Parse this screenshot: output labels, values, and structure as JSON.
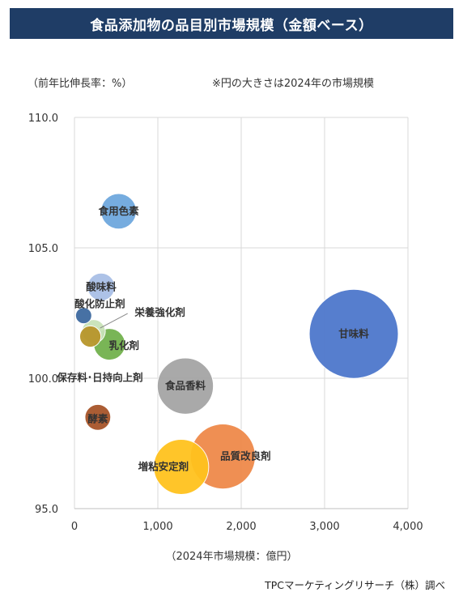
{
  "title": "食品添加物の品目別市場規模（金額ベース）",
  "y_unit_note": "（前年比伸長率：%）",
  "size_note": "※円の大きさは2024年の市場規模",
  "credit": "TPCマーケティングリサーチ（株）調べ",
  "chart_data": {
    "type": "scatter",
    "xlabel": "（2024年市場規模：億円）",
    "ylabel": "",
    "xlim": [
      0,
      4000
    ],
    "ylim": [
      95.0,
      110.0
    ],
    "xticks": [
      "0",
      "1,000",
      "2,000",
      "3,000",
      "4,000"
    ],
    "yticks": [
      "95.0",
      "100.0",
      "105.0",
      "110.0"
    ],
    "grid": true,
    "points": [
      {
        "label": "甘味料",
        "x": 3350,
        "y": 101.7,
        "size": 3350,
        "color": "#4e78cc"
      },
      {
        "label": "品質改良剤",
        "x": 1780,
        "y": 97.0,
        "size": 1780,
        "color": "#ef8a4a"
      },
      {
        "label": "増粘安定剤",
        "x": 1280,
        "y": 96.6,
        "size": 1280,
        "color": "#ffc21e"
      },
      {
        "label": "食品香料",
        "x": 1330,
        "y": 99.7,
        "size": 1330,
        "color": "#a5a5a5"
      },
      {
        "label": "食用色素",
        "x": 530,
        "y": 106.4,
        "size": 530,
        "color": "#6fa8de"
      },
      {
        "label": "酸味料",
        "x": 320,
        "y": 103.5,
        "size": 320,
        "color": "#a9bfe6"
      },
      {
        "label": "乳化剤",
        "x": 420,
        "y": 101.3,
        "size": 420,
        "color": "#72b24e"
      },
      {
        "label": "栄養強化剤",
        "x": 230,
        "y": 101.8,
        "size": 230,
        "color": "#c9e3b8"
      },
      {
        "label": "保存料･日持向上剤",
        "x": 190,
        "y": 101.6,
        "size": 190,
        "color": "#b8962b"
      },
      {
        "label": "酸化防止剤",
        "x": 110,
        "y": 102.4,
        "size": 110,
        "color": "#3e6aa0"
      },
      {
        "label": "酵素",
        "x": 280,
        "y": 98.5,
        "size": 280,
        "color": "#a7552a"
      }
    ]
  }
}
